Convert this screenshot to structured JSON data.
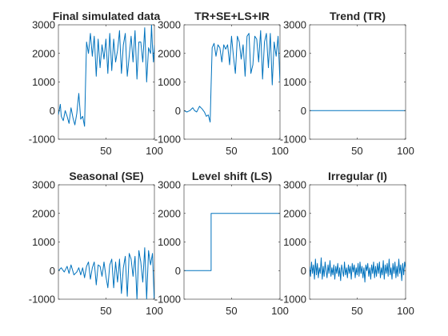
{
  "chart_data": [
    {
      "type": "line",
      "title": "Final simulated data",
      "xlim": [
        1,
        100
      ],
      "ylim": [
        -1000,
        3000
      ],
      "xticks": [
        "50",
        "100"
      ],
      "yticks": [
        "-1000",
        "0",
        "1000",
        "2000",
        "3000"
      ],
      "color": "#0072bd",
      "anchors": [
        [
          1,
          -150
        ],
        [
          3,
          220
        ],
        [
          4,
          -200
        ],
        [
          6,
          -350
        ],
        [
          8,
          0
        ],
        [
          10,
          -200
        ],
        [
          12,
          -450
        ],
        [
          14,
          100
        ],
        [
          16,
          -250
        ],
        [
          18,
          -500
        ],
        [
          20,
          -100
        ],
        [
          22,
          600
        ],
        [
          24,
          -300
        ],
        [
          26,
          -200
        ],
        [
          28,
          -550
        ],
        [
          30,
          2400
        ],
        [
          32,
          2000
        ],
        [
          34,
          2700
        ],
        [
          36,
          1900
        ],
        [
          38,
          2600
        ],
        [
          40,
          1200
        ],
        [
          42,
          2500
        ],
        [
          44,
          1500
        ],
        [
          46,
          2300
        ],
        [
          48,
          1800
        ],
        [
          50,
          2500
        ],
        [
          52,
          1300
        ],
        [
          54,
          2700
        ],
        [
          56,
          1400
        ],
        [
          58,
          2500
        ],
        [
          60,
          1700
        ],
        [
          62,
          2100
        ],
        [
          64,
          2800
        ],
        [
          66,
          1300
        ],
        [
          68,
          2300
        ],
        [
          70,
          2700
        ],
        [
          72,
          1200
        ],
        [
          74,
          1900
        ],
        [
          76,
          2600
        ],
        [
          78,
          1700
        ],
        [
          80,
          2800
        ],
        [
          82,
          1100
        ],
        [
          84,
          2400
        ],
        [
          86,
          2400
        ],
        [
          88,
          1700
        ],
        [
          90,
          2900
        ],
        [
          92,
          1000
        ],
        [
          94,
          2200
        ],
        [
          96,
          2000
        ],
        [
          97,
          3000
        ],
        [
          98,
          2200
        ],
        [
          99,
          1700
        ],
        [
          100,
          2300
        ]
      ]
    },
    {
      "type": "line",
      "title": "TR+SE+LS+IR",
      "xlim": [
        1,
        100
      ],
      "ylim": [
        -1000,
        3000
      ],
      "xticks": [
        "50",
        "100"
      ],
      "yticks": [
        "-1000",
        "0",
        "1000",
        "2000",
        "3000"
      ],
      "color": "#0072bd",
      "anchors": [
        [
          1,
          0
        ],
        [
          4,
          -50
        ],
        [
          7,
          0
        ],
        [
          10,
          100
        ],
        [
          12,
          0
        ],
        [
          14,
          -50
        ],
        [
          17,
          150
        ],
        [
          20,
          50
        ],
        [
          22,
          -50
        ],
        [
          24,
          -200
        ],
        [
          26,
          -150
        ],
        [
          28,
          -400
        ],
        [
          30,
          2200
        ],
        [
          32,
          2350
        ],
        [
          34,
          1900
        ],
        [
          36,
          2300
        ],
        [
          38,
          2200
        ],
        [
          40,
          1700
        ],
        [
          42,
          2300
        ],
        [
          44,
          2150
        ],
        [
          46,
          2300
        ],
        [
          48,
          1600
        ],
        [
          50,
          2600
        ],
        [
          52,
          1900
        ],
        [
          54,
          1300
        ],
        [
          56,
          2600
        ],
        [
          58,
          2400
        ],
        [
          60,
          1800
        ],
        [
          62,
          2300
        ],
        [
          64,
          1200
        ],
        [
          66,
          2600
        ],
        [
          68,
          2700
        ],
        [
          70,
          1300
        ],
        [
          72,
          1600
        ],
        [
          74,
          2600
        ],
        [
          76,
          2500
        ],
        [
          78,
          1700
        ],
        [
          80,
          2800
        ],
        [
          82,
          1100
        ],
        [
          84,
          2400
        ],
        [
          86,
          2700
        ],
        [
          88,
          1500
        ],
        [
          90,
          2700
        ],
        [
          92,
          900
        ],
        [
          94,
          2400
        ],
        [
          96,
          1900
        ],
        [
          98,
          2600
        ],
        [
          100,
          1000
        ]
      ]
    },
    {
      "type": "line",
      "title": "Trend (TR)",
      "xlim": [
        1,
        100
      ],
      "ylim": [
        -1000,
        3000
      ],
      "xticks": [
        "50",
        "100"
      ],
      "yticks": [
        "-1000",
        "0",
        "1000",
        "2000",
        "3000"
      ],
      "color": "#0072bd",
      "anchors": [
        [
          1,
          0
        ],
        [
          100,
          0
        ]
      ]
    },
    {
      "type": "line",
      "title": "Seasonal (SE)",
      "xlim": [
        1,
        100
      ],
      "ylim": [
        -1000,
        3000
      ],
      "xticks": [
        "50",
        "100"
      ],
      "yticks": [
        "-1000",
        "0",
        "1000",
        "2000",
        "3000"
      ],
      "color": "#0072bd",
      "anchors": [
        [
          1,
          0
        ],
        [
          4,
          100
        ],
        [
          7,
          -50
        ],
        [
          10,
          150
        ],
        [
          12,
          -100
        ],
        [
          14,
          200
        ],
        [
          17,
          -150
        ],
        [
          20,
          -50
        ],
        [
          22,
          100
        ],
        [
          24,
          -150
        ],
        [
          26,
          100
        ],
        [
          28,
          -250
        ],
        [
          30,
          150
        ],
        [
          32,
          300
        ],
        [
          34,
          -300
        ],
        [
          36,
          100
        ],
        [
          38,
          300
        ],
        [
          40,
          -500
        ],
        [
          42,
          200
        ],
        [
          44,
          150
        ],
        [
          46,
          -200
        ],
        [
          48,
          300
        ],
        [
          50,
          -200
        ],
        [
          52,
          -600
        ],
        [
          54,
          200
        ],
        [
          56,
          400
        ],
        [
          58,
          -600
        ],
        [
          60,
          300
        ],
        [
          62,
          -400
        ],
        [
          64,
          400
        ],
        [
          66,
          -800
        ],
        [
          68,
          100
        ],
        [
          70,
          500
        ],
        [
          72,
          -900
        ],
        [
          74,
          600
        ],
        [
          76,
          400
        ],
        [
          78,
          -200
        ],
        [
          80,
          500
        ],
        [
          82,
          -1000
        ],
        [
          84,
          700
        ],
        [
          86,
          300
        ],
        [
          88,
          -400
        ],
        [
          90,
          800
        ],
        [
          92,
          -1000
        ],
        [
          94,
          700
        ],
        [
          96,
          200
        ],
        [
          98,
          600
        ],
        [
          100,
          -1200
        ]
      ]
    },
    {
      "type": "line",
      "title": "Level shift (LS)",
      "xlim": [
        1,
        100
      ],
      "ylim": [
        -1000,
        3000
      ],
      "xticks": [
        "50",
        "100"
      ],
      "yticks": [
        "-1000",
        "0",
        "1000",
        "2000",
        "3000"
      ],
      "color": "#0072bd",
      "anchors": [
        [
          1,
          0
        ],
        [
          29,
          0
        ],
        [
          29,
          2000
        ],
        [
          100,
          2000
        ]
      ],
      "step": true
    },
    {
      "type": "line",
      "title": "Irregular (I)",
      "xlim": [
        1,
        100
      ],
      "ylim": [
        -1000,
        3000
      ],
      "xticks": [
        "50",
        "100"
      ],
      "yticks": [
        "-1000",
        "0",
        "1000",
        "2000",
        "3000"
      ],
      "color": "#0072bd",
      "anchors": [
        [
          1,
          150
        ],
        [
          2,
          -200
        ],
        [
          3,
          300
        ],
        [
          4,
          -100
        ],
        [
          5,
          200
        ],
        [
          6,
          -300
        ],
        [
          7,
          400
        ],
        [
          8,
          -150
        ],
        [
          9,
          250
        ],
        [
          10,
          -250
        ],
        [
          11,
          100
        ],
        [
          12,
          -100
        ],
        [
          13,
          450
        ],
        [
          14,
          -300
        ],
        [
          15,
          150
        ],
        [
          16,
          -200
        ],
        [
          17,
          300
        ],
        [
          18,
          0
        ],
        [
          19,
          -250
        ],
        [
          20,
          200
        ],
        [
          21,
          -100
        ],
        [
          22,
          350
        ],
        [
          23,
          -200
        ],
        [
          24,
          100
        ],
        [
          25,
          -150
        ],
        [
          26,
          200
        ],
        [
          27,
          -300
        ],
        [
          28,
          150
        ],
        [
          29,
          -100
        ],
        [
          30,
          250
        ],
        [
          31,
          -200
        ],
        [
          32,
          100
        ],
        [
          33,
          -350
        ],
        [
          34,
          200
        ],
        [
          35,
          0
        ],
        [
          36,
          -200
        ],
        [
          37,
          300
        ],
        [
          38,
          -150
        ],
        [
          39,
          100
        ],
        [
          40,
          -250
        ],
        [
          41,
          200
        ],
        [
          42,
          -100
        ],
        [
          43,
          150
        ],
        [
          44,
          -300
        ],
        [
          45,
          250
        ],
        [
          46,
          -50
        ],
        [
          47,
          200
        ],
        [
          48,
          -250
        ],
        [
          49,
          100
        ],
        [
          50,
          -150
        ],
        [
          51,
          250
        ],
        [
          52,
          -200
        ],
        [
          53,
          300
        ],
        [
          54,
          -100
        ],
        [
          55,
          150
        ],
        [
          56,
          -250
        ],
        [
          57,
          100
        ],
        [
          58,
          -400
        ],
        [
          59,
          200
        ],
        [
          60,
          0
        ],
        [
          61,
          250
        ],
        [
          62,
          -200
        ],
        [
          63,
          100
        ],
        [
          64,
          -300
        ],
        [
          65,
          200
        ],
        [
          66,
          -100
        ],
        [
          67,
          300
        ],
        [
          68,
          -250
        ],
        [
          69,
          150
        ],
        [
          70,
          -200
        ],
        [
          71,
          250
        ],
        [
          72,
          -100
        ],
        [
          73,
          300
        ],
        [
          74,
          -250
        ],
        [
          75,
          100
        ],
        [
          76,
          -150
        ],
        [
          77,
          350
        ],
        [
          78,
          -300
        ],
        [
          79,
          200
        ],
        [
          80,
          -100
        ],
        [
          81,
          250
        ],
        [
          82,
          -200
        ],
        [
          83,
          400
        ],
        [
          84,
          -150
        ],
        [
          85,
          100
        ],
        [
          86,
          -300
        ],
        [
          87,
          250
        ],
        [
          88,
          -100
        ],
        [
          89,
          300
        ],
        [
          90,
          -250
        ],
        [
          91,
          150
        ],
        [
          92,
          -200
        ],
        [
          93,
          400
        ],
        [
          94,
          -100
        ],
        [
          95,
          200
        ],
        [
          96,
          -350
        ],
        [
          97,
          250
        ],
        [
          98,
          -150
        ],
        [
          99,
          300
        ],
        [
          100,
          100
        ]
      ]
    }
  ]
}
